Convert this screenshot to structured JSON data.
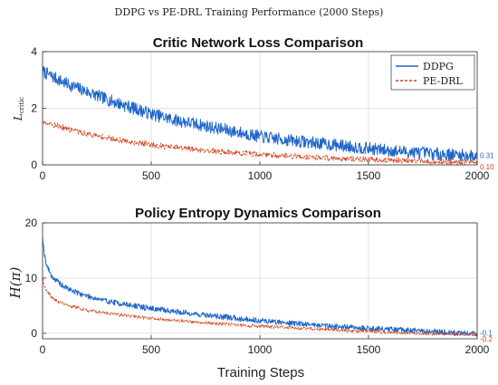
{
  "figure": {
    "suptitle": "DDPG vs PE-DRL Training Performance (2000 Steps)",
    "xlabel": "Training Steps"
  },
  "colors": {
    "ddpg": "#1f66c9",
    "pedrl": "#d4441c"
  },
  "chart_data": [
    {
      "type": "line",
      "title": "Critic Network Loss Comparison",
      "ylabel": "L_critic",
      "ylabel_main": "L",
      "ylabel_sub": "critic",
      "xlim": [
        0,
        2000
      ],
      "ylim": [
        0,
        4
      ],
      "xticks": [
        0,
        500,
        1000,
        1500,
        2000
      ],
      "xtick_labels": [
        "0",
        "500",
        "1000",
        "1500",
        "2000"
      ],
      "yticks": [
        0,
        2,
        4
      ],
      "ytick_labels": [
        "0",
        "2",
        "4"
      ],
      "legend": {
        "position": "top-right",
        "entries": [
          "DDPG",
          "PE-DRL"
        ]
      },
      "series": [
        {
          "name": "DDPG",
          "style": "solid",
          "x": [
            0,
            100,
            200,
            300,
            400,
            500,
            600,
            700,
            800,
            900,
            1000,
            1100,
            1200,
            1300,
            1400,
            1500,
            1600,
            1700,
            1800,
            1900,
            2000
          ],
          "y": [
            3.3,
            2.9,
            2.6,
            2.3,
            2.05,
            1.8,
            1.6,
            1.45,
            1.3,
            1.15,
            1.0,
            0.9,
            0.82,
            0.74,
            0.66,
            0.58,
            0.5,
            0.45,
            0.4,
            0.35,
            0.31
          ],
          "noise": 0.22,
          "end_label": "0.31"
        },
        {
          "name": "PE-DRL",
          "style": "dashed",
          "x": [
            0,
            100,
            200,
            300,
            400,
            500,
            600,
            700,
            800,
            900,
            1000,
            1100,
            1200,
            1300,
            1400,
            1500,
            1600,
            1700,
            1800,
            1900,
            2000
          ],
          "y": [
            1.55,
            1.3,
            1.1,
            0.95,
            0.82,
            0.72,
            0.62,
            0.55,
            0.48,
            0.42,
            0.37,
            0.33,
            0.29,
            0.25,
            0.22,
            0.19,
            0.16,
            0.14,
            0.12,
            0.11,
            0.1
          ],
          "noise": 0.1,
          "end_label": "0.10"
        }
      ]
    },
    {
      "type": "line",
      "title": "Policy Entropy Dynamics Comparison",
      "ylabel": "H(π)",
      "xlabel": "Training Steps",
      "xlim": [
        0,
        2000
      ],
      "ylim": [
        -1,
        20
      ],
      "xticks": [
        0,
        500,
        1000,
        1500,
        2000
      ],
      "xtick_labels": [
        "0",
        "500",
        "1000",
        "1500",
        "2000"
      ],
      "yticks": [
        0,
        10,
        20
      ],
      "ytick_labels": [
        "0",
        "10",
        "20"
      ],
      "series": [
        {
          "name": "DDPG",
          "style": "solid",
          "x": [
            0,
            5,
            10,
            20,
            40,
            60,
            100,
            150,
            200,
            300,
            400,
            500,
            600,
            700,
            800,
            900,
            1000,
            1100,
            1200,
            1300,
            1400,
            1500,
            1600,
            1700,
            1800,
            1900,
            2000
          ],
          "y": [
            17.5,
            15.5,
            14.0,
            12.2,
            10.5,
            9.6,
            8.4,
            7.5,
            6.8,
            5.8,
            5.1,
            4.5,
            4.0,
            3.5,
            3.1,
            2.7,
            2.3,
            2.0,
            1.7,
            1.4,
            1.1,
            0.9,
            0.7,
            0.5,
            0.3,
            0.1,
            -0.1
          ],
          "noise": 0.5,
          "end_label": "-0.1"
        },
        {
          "name": "PE-DRL",
          "style": "dashed",
          "x": [
            0,
            5,
            10,
            20,
            40,
            60,
            100,
            150,
            200,
            300,
            400,
            500,
            600,
            700,
            800,
            900,
            1000,
            1100,
            1200,
            1300,
            1400,
            1500,
            1600,
            1700,
            1800,
            1900,
            2000
          ],
          "y": [
            10.0,
            9.0,
            8.3,
            7.5,
            6.6,
            6.0,
            5.3,
            4.7,
            4.2,
            3.6,
            3.1,
            2.7,
            2.35,
            2.05,
            1.75,
            1.5,
            1.25,
            1.05,
            0.85,
            0.7,
            0.5,
            0.35,
            0.2,
            0.05,
            -0.05,
            -0.15,
            -0.2
          ],
          "noise": 0.3,
          "end_label": "-0.2"
        }
      ]
    }
  ]
}
